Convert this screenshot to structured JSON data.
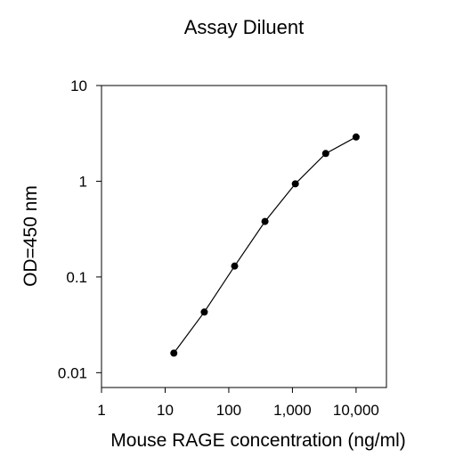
{
  "chart_data": {
    "type": "line",
    "title": "Assay Diluent",
    "xlabel": "Mouse RAGE concentration (ng/ml)",
    "ylabel": "OD=450 nm",
    "xscale": "log",
    "yscale": "log",
    "xlim": [
      1,
      30000
    ],
    "ylim": [
      0.007,
      10
    ],
    "grid": false,
    "x_ticks": [
      {
        "value": 1,
        "label": "1"
      },
      {
        "value": 10,
        "label": "10"
      },
      {
        "value": 100,
        "label": "100"
      },
      {
        "value": 1000,
        "label": "1,000"
      },
      {
        "value": 10000,
        "label": "10,000"
      }
    ],
    "y_ticks": [
      {
        "value": 0.01,
        "label": "0.01"
      },
      {
        "value": 0.1,
        "label": "0.1"
      },
      {
        "value": 1,
        "label": "1"
      },
      {
        "value": 10,
        "label": "10"
      }
    ],
    "series": [
      {
        "x": [
          13.7,
          41.2,
          123.5,
          370.4,
          1111,
          3333,
          10000
        ],
        "y": [
          0.016,
          0.043,
          0.13,
          0.38,
          0.94,
          1.95,
          2.9
        ]
      }
    ]
  }
}
